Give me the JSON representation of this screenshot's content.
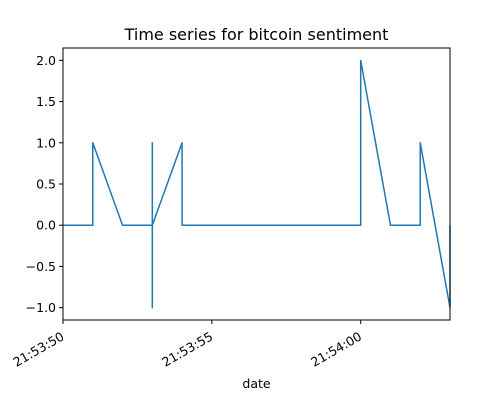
{
  "chart_data": {
    "type": "line",
    "title": "Time series for bitcoin sentiment",
    "xlabel": "date",
    "ylabel": "",
    "x_tick_labels": [
      "21:53:50",
      "21:53:55",
      "21:54:00"
    ],
    "y_tick_labels": [
      "−1.0",
      "−0.5",
      "0.0",
      "0.5",
      "1.0",
      "1.5",
      "2.0"
    ],
    "y_tick_values": [
      -1.0,
      -0.5,
      0.0,
      0.5,
      1.0,
      1.5,
      2.0
    ],
    "xlim": [
      "21:53:50",
      "21:54:03"
    ],
    "ylim": [
      -1.15,
      2.15
    ],
    "grid": false,
    "series": [
      {
        "color": "#1f77b4",
        "points": [
          {
            "x": "21:53:50",
            "y": 0
          },
          {
            "x": "21:53:51",
            "y": 0
          },
          {
            "x": "21:53:51",
            "y": 1
          },
          {
            "x": "21:53:52",
            "y": 0
          },
          {
            "x": "21:53:53",
            "y": 0
          },
          {
            "x": "21:53:53",
            "y": 1
          },
          {
            "x": "21:53:53",
            "y": -1
          },
          {
            "x": "21:53:53",
            "y": 0
          },
          {
            "x": "21:53:54",
            "y": 1
          },
          {
            "x": "21:53:54",
            "y": 0
          },
          {
            "x": "21:54:00",
            "y": 0
          },
          {
            "x": "21:54:00",
            "y": 1
          },
          {
            "x": "21:54:00",
            "y": 0
          },
          {
            "x": "21:54:00",
            "y": 2
          },
          {
            "x": "21:54:01",
            "y": 0
          },
          {
            "x": "21:54:02",
            "y": 0
          },
          {
            "x": "21:54:02",
            "y": 1
          },
          {
            "x": "21:54:03",
            "y": -1
          },
          {
            "x": "21:54:03",
            "y": 0
          }
        ]
      }
    ]
  }
}
